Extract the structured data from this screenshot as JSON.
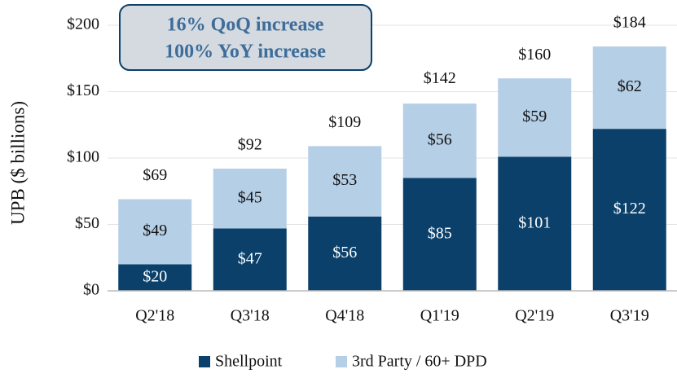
{
  "chart_data": {
    "type": "stacked_bar",
    "y_label": "UPB ($ billions)",
    "annotations": [
      "16% QoQ increase",
      "100% YoY increase"
    ],
    "categories": [
      "Q2'18",
      "Q3'18",
      "Q4'18",
      "Q1'19",
      "Q2'19",
      "Q3'19"
    ],
    "series": [
      {
        "name": "Shellpoint",
        "color": "#0b406b",
        "values": [
          20,
          47,
          56,
          85,
          101,
          122
        ],
        "value_labels": [
          "$20",
          "$47",
          "$56",
          "$85",
          "$101",
          "$122"
        ]
      },
      {
        "name": "3rd Party / 60+ DPD",
        "color": "#b5cfe7",
        "values": [
          49,
          45,
          53,
          56,
          59,
          62
        ],
        "value_labels": [
          "$49",
          "$45",
          "$53",
          "$56",
          "$59",
          "$62"
        ]
      }
    ],
    "totals": [
      69,
      92,
      109,
      142,
      160,
      184
    ],
    "total_labels": [
      "$69",
      "$92",
      "$109",
      "$142",
      "$160",
      "$184"
    ],
    "ylim": [
      0,
      200
    ],
    "yticks": [
      {
        "value": 0,
        "label": "$0"
      },
      {
        "value": 50,
        "label": "$50"
      },
      {
        "value": 100,
        "label": "$100"
      },
      {
        "value": 150,
        "label": "$150"
      },
      {
        "value": 200,
        "label": "$200"
      }
    ],
    "grid": true,
    "legend": "bottom"
  }
}
